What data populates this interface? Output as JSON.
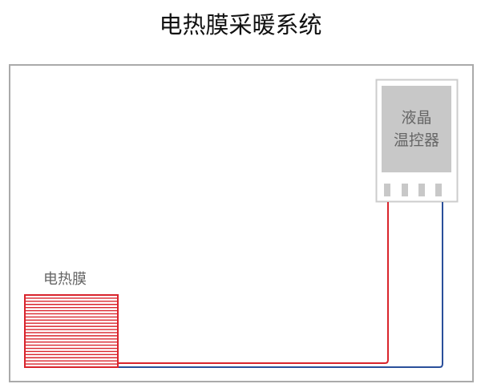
{
  "title": "电热膜采暖系统",
  "controller": {
    "line1": "液晶",
    "line2": "温控器",
    "connector_count": 4
  },
  "film": {
    "label": "电热膜",
    "stripe_count": 23
  },
  "colors": {
    "film": "#d9242c",
    "live_wire": "#d9242c",
    "neutral_wire": "#2a4f9a",
    "frame": "#aaaaaa",
    "screen": "#c8c8c8"
  }
}
